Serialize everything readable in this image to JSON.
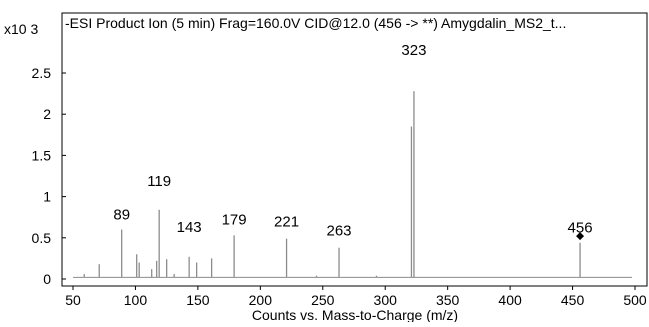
{
  "chart_data": {
    "type": "line",
    "title": "-ESI Product Ion (5 min) Frag=160.0V CID@12.0 (456 -> **) Amygdalin_MS2_t...",
    "xlabel": "Counts vs. Mass-to-Charge (m/z)",
    "ylabel": "",
    "y_multiplier_label": "x10 3",
    "xlim": [
      40,
      500
    ],
    "ylim": [
      0,
      2.75
    ],
    "x_ticks": [
      50,
      100,
      150,
      200,
      250,
      300,
      350,
      400,
      450,
      500
    ],
    "x_tick_labels": [
      "50",
      "100",
      "150",
      "200",
      "250",
      "300",
      "350",
      "400",
      "450",
      "500"
    ],
    "y_ticks": [
      0,
      0.5,
      1,
      1.5,
      2,
      2.5
    ],
    "y_tick_labels": [
      "0",
      "0.5",
      "1",
      "1.5",
      "2",
      "2.5"
    ],
    "baseline": 0.02,
    "series": [
      {
        "peaks": [
          {
            "x": 59,
            "y": 0.06
          },
          {
            "x": 71,
            "y": 0.18
          },
          {
            "x": 89,
            "y": 0.6
          },
          {
            "x": 101,
            "y": 0.3
          },
          {
            "x": 103,
            "y": 0.2
          },
          {
            "x": 113,
            "y": 0.12
          },
          {
            "x": 117,
            "y": 0.22
          },
          {
            "x": 119,
            "y": 0.84
          },
          {
            "x": 125,
            "y": 0.24
          },
          {
            "x": 131,
            "y": 0.06
          },
          {
            "x": 143,
            "y": 0.27
          },
          {
            "x": 149,
            "y": 0.2
          },
          {
            "x": 161,
            "y": 0.25
          },
          {
            "x": 179,
            "y": 0.53
          },
          {
            "x": 221,
            "y": 0.49
          },
          {
            "x": 245,
            "y": 0.04
          },
          {
            "x": 263,
            "y": 0.38
          },
          {
            "x": 293,
            "y": 0.04
          },
          {
            "x": 321,
            "y": 1.85
          },
          {
            "x": 323,
            "y": 2.28
          },
          {
            "x": 456,
            "y": 0.44
          }
        ]
      }
    ],
    "peak_labels": [
      {
        "x": 89,
        "text": "89",
        "ref_y": 0.6
      },
      {
        "x": 119,
        "text": "119",
        "ref_y": 0.84
      },
      {
        "x": 143,
        "text": "143",
        "ref_y": 0.27
      },
      {
        "x": 179,
        "text": "179",
        "ref_y": 0.53
      },
      {
        "x": 221,
        "text": "221",
        "ref_y": 0.49
      },
      {
        "x": 263,
        "text": "263",
        "ref_y": 0.38
      },
      {
        "x": 323,
        "text": "323",
        "ref_y": 2.28
      },
      {
        "x": 456,
        "text": "456",
        "ref_y": 0.44
      }
    ],
    "precursor_marker": {
      "x": 456,
      "y": 0.52,
      "shape": "diamond"
    },
    "colors": {
      "peaks": "#8c8c8c",
      "axis": "#000000",
      "marker": "#000000"
    },
    "grid": false
  }
}
